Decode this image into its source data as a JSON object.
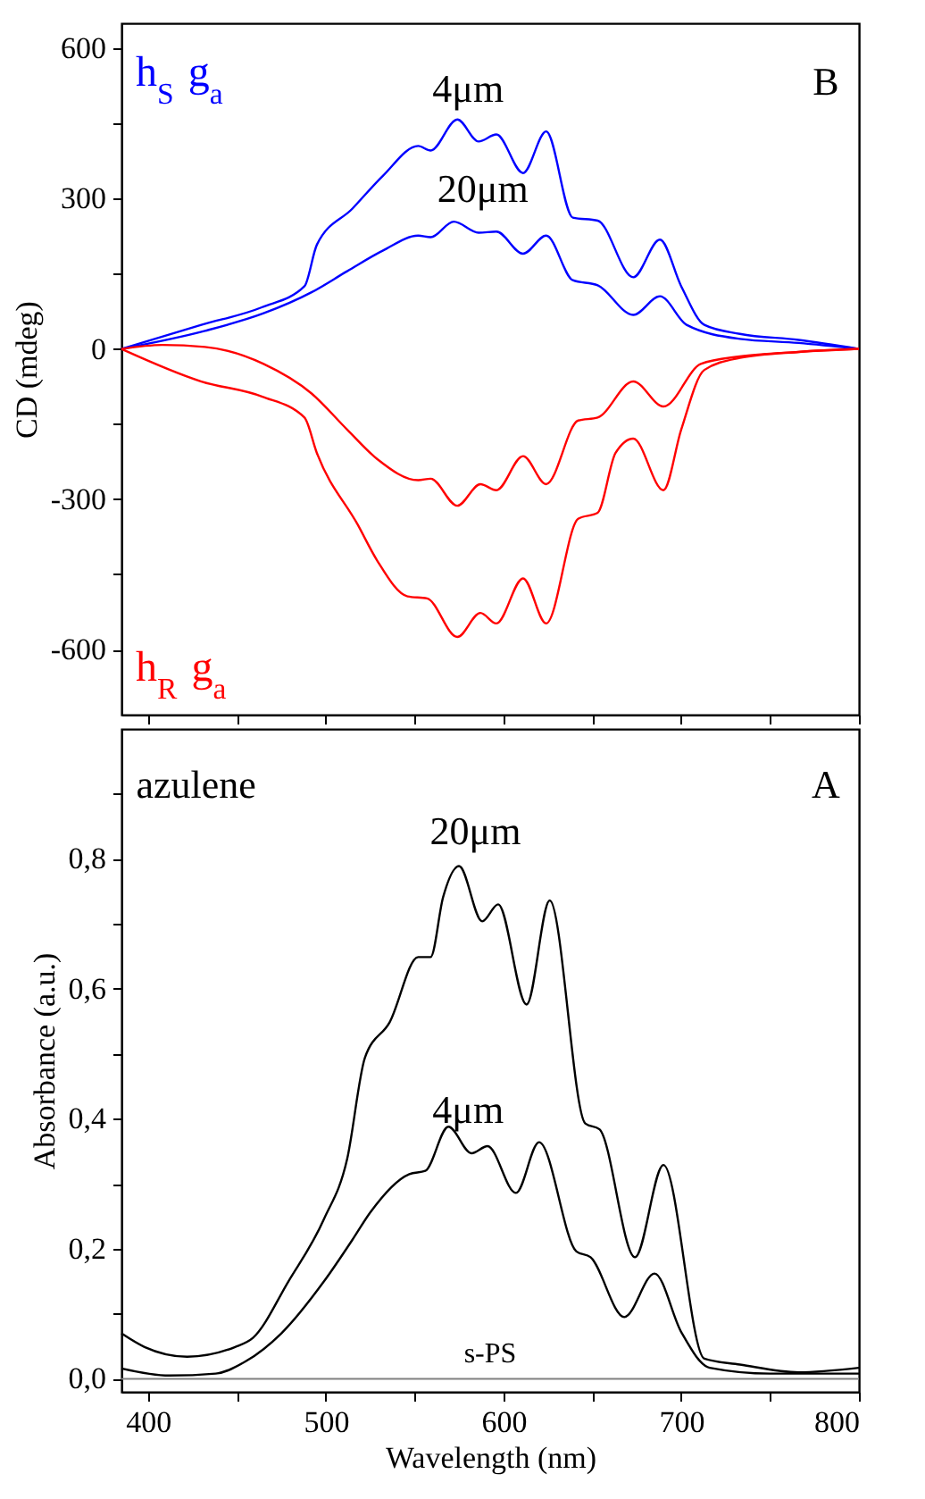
{
  "chart_data": [
    {
      "type": "line",
      "ylabel": "CD (mdeg)",
      "xlim": [
        385,
        800
      ],
      "ylim": [
        -730,
        650
      ],
      "tick_labels": "y",
      "xticks": [
        {
          "value": 400,
          "label": null
        },
        {
          "value": 450,
          "label": null
        },
        {
          "value": 500,
          "label": null
        },
        {
          "value": 550,
          "label": null
        },
        {
          "value": 600,
          "label": null
        },
        {
          "value": 650,
          "label": null
        },
        {
          "value": 700,
          "label": null
        },
        {
          "value": 750,
          "label": null
        },
        {
          "value": 800,
          "label": null
        }
      ],
      "yticks": [
        -600,
        {
          "value": -450,
          "label": null
        },
        -300,
        {
          "value": -150,
          "label": null
        },
        0,
        {
          "value": 150,
          "label": null
        },
        300,
        {
          "value": 450,
          "label": null
        },
        600
      ],
      "series": [
        {
          "name": "h$_{S}$ g$_{a}$",
          "color": "#0000ff",
          "x": [
            385,
            430,
            464,
            488,
            495,
            515,
            532,
            552,
            559,
            574,
            586,
            596,
            611,
            624,
            639,
            653,
            673,
            688,
            700,
            713,
            733,
            766,
            800
          ],
          "values": [
            0,
            48,
            83,
            125,
            208,
            280,
            345,
            405,
            396,
            458,
            414,
            428,
            351,
            434,
            262,
            256,
            143,
            218,
            125,
            48,
            30,
            18,
            0
          ]
        },
        {
          "color": "#0000ff",
          "x": [
            385,
            432,
            465,
            492,
            512,
            532,
            552,
            559,
            572,
            586,
            596,
            611,
            624,
            639,
            653,
            673,
            688,
            703,
            733,
            766,
            800
          ],
          "values": [
            0,
            36,
            71,
            113,
            155,
            196,
            226,
            223,
            254,
            232,
            234,
            190,
            226,
            137,
            127,
            68,
            105,
            48,
            20,
            12,
            0
          ]
        },
        {
          "name": "h$_{R}$ g$_{a}$",
          "color": "#ff0000",
          "x": [
            385,
            430,
            464,
            488,
            495,
            518,
            529,
            546,
            557,
            574,
            587,
            596,
            611,
            624,
            642,
            653,
            663,
            673,
            690,
            700,
            713,
            733,
            766,
            800
          ],
          "values": [
            0,
            -65,
            -95,
            -137,
            -208,
            -351,
            -423,
            -494,
            -498,
            -575,
            -527,
            -548,
            -458,
            -548,
            -339,
            -327,
            -208,
            -179,
            -282,
            -161,
            -42,
            -18,
            -6,
            0
          ]
        },
        {
          "color": "#ff0000",
          "x": [
            385,
            408,
            432,
            465,
            492,
            512,
            529,
            552,
            559,
            574,
            587,
            596,
            611,
            624,
            642,
            653,
            673,
            690,
            711,
            733,
            766,
            800
          ],
          "values": [
            0,
            8,
            4,
            -30,
            -89,
            -161,
            -220,
            -262,
            -259,
            -313,
            -270,
            -282,
            -214,
            -270,
            -143,
            -137,
            -65,
            -115,
            -30,
            -15,
            -6,
            0
          ]
        }
      ],
      "annotations": [
        "4μm",
        "20μm",
        "B"
      ]
    },
    {
      "type": "line",
      "xlabel": "Wavelength (nm)",
      "ylabel": "Absorbance (a.u.)",
      "xlim": [
        385,
        800
      ],
      "ylim": [
        -0.02,
        1.0
      ],
      "xticks": [
        400,
        {
          "value": 450,
          "label": null
        },
        500,
        {
          "value": 550,
          "label": null
        },
        600,
        {
          "value": 650,
          "label": null
        },
        700,
        {
          "value": 750,
          "label": null
        },
        800
      ],
      "yticks": [
        {
          "value": 0,
          "label": "0,0"
        },
        {
          "value": 0.1,
          "label": null
        },
        {
          "value": 0.2,
          "label": "0,2"
        },
        {
          "value": 0.3,
          "label": null
        },
        {
          "value": 0.4,
          "label": "0,4"
        },
        {
          "value": 0.5,
          "label": null
        },
        {
          "value": 0.6,
          "label": "0,6"
        },
        {
          "value": 0.7,
          "label": null
        },
        {
          "value": 0.8,
          "label": "0,8"
        },
        {
          "value": 0.9,
          "label": null
        }
      ],
      "series": [
        {
          "color": "#000000",
          "x": [
            385,
            398,
            422,
            449,
            459,
            479,
            499,
            512,
            522,
            536,
            552,
            559,
            566,
            575,
            588,
            597,
            613,
            626,
            646,
            654,
            674,
            690,
            713,
            733,
            766,
            800
          ],
          "values": [
            0.07,
            0.049,
            0.034,
            0.049,
            0.063,
            0.15,
            0.246,
            0.338,
            0.494,
            0.549,
            0.649,
            0.649,
            0.741,
            0.789,
            0.704,
            0.73,
            0.576,
            0.736,
            0.393,
            0.384,
            0.187,
            0.329,
            0.031,
            0.022,
            0.01,
            0.017
          ]
        },
        {
          "color": "#000000",
          "x": [
            385,
            412,
            438,
            455,
            475,
            499,
            515,
            525,
            547,
            556,
            569,
            582,
            591,
            607,
            620,
            641,
            649,
            668,
            685,
            700,
            716,
            750,
            800
          ],
          "values": [
            0.016,
            0.005,
            0.008,
            0.027,
            0.07,
            0.15,
            0.214,
            0.256,
            0.315,
            0.32,
            0.388,
            0.347,
            0.358,
            0.286,
            0.364,
            0.196,
            0.187,
            0.095,
            0.162,
            0.072,
            0.017,
            0.008,
            0.008
          ]
        }
      ],
      "ref_lines": [
        {
          "axis": "y",
          "value": 0,
          "label": "s-PS",
          "color": "#808080"
        }
      ],
      "annotations": [
        "azulene",
        "A",
        "20μm",
        "4μm"
      ]
    }
  ]
}
